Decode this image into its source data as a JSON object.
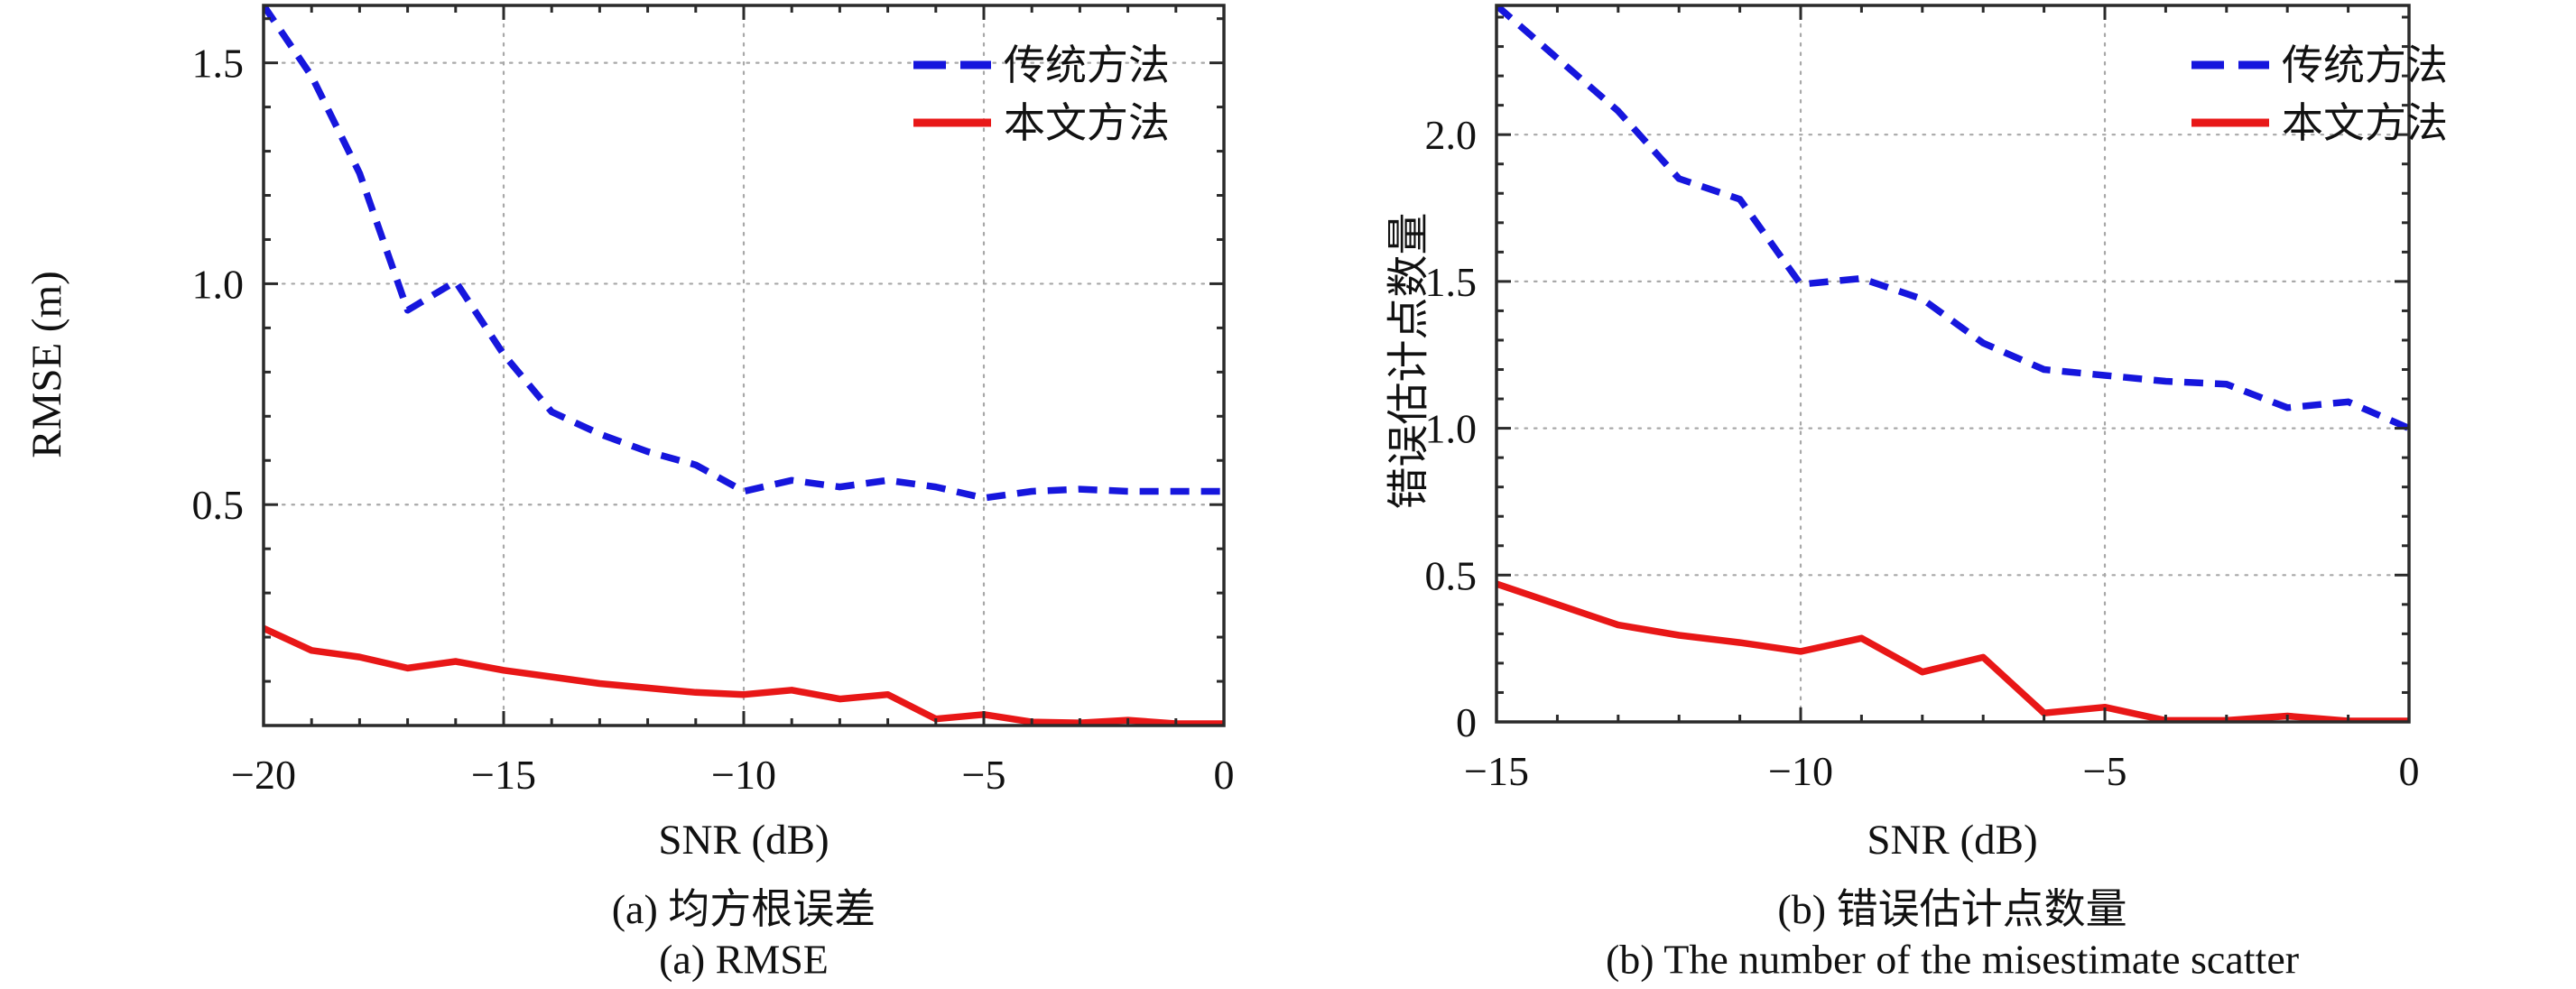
{
  "colors": {
    "traditional": "#1616dd",
    "proposed": "#e81717",
    "grid": "#a8a8a8",
    "axis": "#2a2a2a",
    "text": "#111111"
  },
  "chart_data": [
    {
      "type": "line",
      "title": "",
      "xlabel": "SNR (dB)",
      "ylabel": "RMSE (m)",
      "captions": [
        "(a) 均方根误差",
        "(a) RMSE"
      ],
      "xlim": [
        -20,
        0
      ],
      "ylim": [
        0,
        1.63
      ],
      "xticks": [
        -20,
        -15,
        -10,
        -5,
        0
      ],
      "xtick_labels": [
        "−20",
        "−15",
        "−10",
        "−5",
        "0"
      ],
      "yticks": [
        0.5,
        1.0,
        1.5
      ],
      "ytick_labels": [
        "0.5",
        "1.0",
        "1.5"
      ],
      "grid": true,
      "legend_position": "top-right",
      "x": [
        -20,
        -19,
        -18,
        -17,
        -16,
        -15,
        -14,
        -13,
        -12,
        -11,
        -10,
        -9,
        -8,
        -7,
        -6,
        -5,
        -4,
        -3,
        -2,
        -1,
        0
      ],
      "series": [
        {
          "name": "传统方法",
          "style": "dashed",
          "color": "#1616dd",
          "values": [
            1.63,
            1.47,
            1.25,
            0.94,
            1.005,
            0.84,
            0.71,
            0.66,
            0.62,
            0.59,
            0.53,
            0.555,
            0.54,
            0.555,
            0.54,
            0.515,
            0.53,
            0.535,
            0.53,
            0.53,
            0.53
          ]
        },
        {
          "name": "本文方法",
          "style": "solid",
          "color": "#e81717",
          "values": [
            0.22,
            0.17,
            0.155,
            0.13,
            0.145,
            0.125,
            0.11,
            0.095,
            0.085,
            0.075,
            0.07,
            0.08,
            0.06,
            0.07,
            0.015,
            0.025,
            0.008,
            0.006,
            0.012,
            0.004,
            0.004
          ]
        }
      ]
    },
    {
      "type": "line",
      "title": "",
      "xlabel": "SNR (dB)",
      "ylabel": "错误估计点数量",
      "captions": [
        "(b) 错误估计点数量",
        "(b) The number of the misestimate scatter"
      ],
      "xlim": [
        -15,
        0
      ],
      "ylim": [
        0,
        2.44
      ],
      "xticks": [
        -15,
        -10,
        -5,
        0
      ],
      "xtick_labels": [
        "−15",
        "−10",
        "−5",
        "0"
      ],
      "yticks": [
        0,
        0.5,
        1.0,
        1.5,
        2.0
      ],
      "ytick_labels": [
        "0",
        "0.5",
        "1.0",
        "1.5",
        "2.0"
      ],
      "grid": true,
      "legend_position": "top-right",
      "x": [
        -15,
        -14,
        -13,
        -12,
        -11,
        -10,
        -9,
        -8,
        -7,
        -6,
        -5,
        -4,
        -3,
        -2,
        -1,
        0
      ],
      "series": [
        {
          "name": "传统方法",
          "style": "dashed",
          "color": "#1616dd",
          "values": [
            2.44,
            2.26,
            2.08,
            1.85,
            1.78,
            1.49,
            1.51,
            1.44,
            1.29,
            1.2,
            1.18,
            1.16,
            1.15,
            1.07,
            1.09,
            1.0
          ]
        },
        {
          "name": "本文方法",
          "style": "solid",
          "color": "#e81717",
          "values": [
            0.47,
            0.4,
            0.33,
            0.295,
            0.27,
            0.24,
            0.285,
            0.17,
            0.22,
            0.03,
            0.05,
            0.005,
            0.005,
            0.02,
            0.003,
            0.003
          ]
        }
      ]
    }
  ],
  "legend": {
    "items": [
      {
        "label": "传统方法",
        "style": "dashed",
        "color": "#1616dd"
      },
      {
        "label": "本文方法",
        "style": "solid",
        "color": "#e81717"
      }
    ]
  }
}
